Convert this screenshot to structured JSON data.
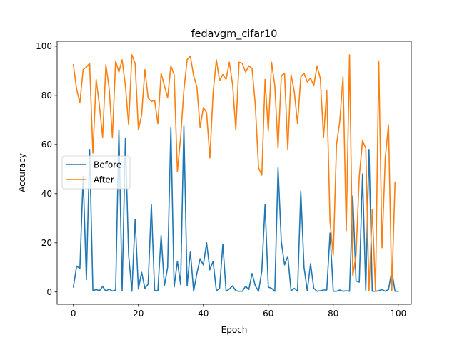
{
  "chart_data": {
    "type": "line",
    "title": "fedavgm_cifar10",
    "xlabel": "Epoch",
    "ylabel": "Accuracy",
    "xlim": [
      -5,
      104
    ],
    "ylim": [
      -5,
      102
    ],
    "xticks": [
      0,
      20,
      40,
      60,
      80,
      100
    ],
    "yticks": [
      0,
      20,
      40,
      60,
      80,
      100
    ],
    "legend": "center-left",
    "grid": false,
    "series": [
      {
        "name": "Before",
        "color": "#1f77b4",
        "values": [
          2,
          10.5,
          9.5,
          47,
          5,
          58,
          0.5,
          1,
          0.5,
          2.2,
          0.3,
          1.2,
          0.4,
          0.8,
          66,
          0.5,
          62.5,
          15,
          0.3,
          29.5,
          1.2,
          8,
          1.5,
          3.2,
          35.5,
          0.5,
          0.6,
          23,
          2.5,
          10,
          67,
          2,
          12.5,
          3,
          67.5,
          2.5,
          16.5,
          0.3,
          7.5,
          13.5,
          11,
          20,
          9,
          12.5,
          0.5,
          1.5,
          19.5,
          0.3,
          1.2,
          2.5,
          0.5,
          0.3,
          0.3,
          2.3,
          1,
          7.5,
          2.5,
          0.3,
          8.5,
          35.5,
          2,
          1.5,
          0.3,
          50.5,
          20.5,
          11,
          14.5,
          0.5,
          1.5,
          0.3,
          41,
          10,
          0.5,
          11.5,
          1.5,
          0.3,
          0.5,
          0.8,
          0.8,
          24,
          0.3,
          0.3,
          0.8,
          0.3,
          0.5,
          0.3,
          39,
          4.5,
          4,
          48,
          0.5,
          58,
          0.3,
          0.3,
          0.5,
          1,
          0.3,
          1,
          8.5,
          0.3,
          0.3
        ]
      },
      {
        "name": "After",
        "color": "#ff7f0e",
        "values": [
          92.5,
          82.5,
          77,
          90.5,
          91.5,
          93,
          56.5,
          86.5,
          76,
          63,
          92.5,
          83,
          63,
          94,
          89.5,
          94.5,
          84,
          68,
          96.5,
          93,
          66,
          72,
          90.5,
          79,
          77.5,
          78,
          68.5,
          89,
          84,
          79,
          92,
          88.5,
          49,
          63,
          82,
          94.5,
          96,
          88,
          83.5,
          67,
          75,
          73,
          54.5,
          81,
          94.5,
          86,
          88.5,
          86.5,
          93.5,
          84.5,
          66,
          93.5,
          93,
          89.5,
          92,
          91,
          76,
          50.5,
          47.5,
          86.5,
          65.5,
          93.5,
          84,
          58.5,
          88,
          89,
          58,
          88.5,
          81.5,
          68.5,
          87.5,
          89,
          85.5,
          87,
          84,
          92,
          87,
          63,
          82,
          28.5,
          15,
          60,
          69.5,
          87.5,
          25,
          96.5,
          6.5,
          15,
          47,
          61.5,
          58.5,
          0.5,
          33.5,
          0.3,
          94,
          18,
          54.5,
          68,
          0.5,
          44.5
        ]
      }
    ]
  }
}
